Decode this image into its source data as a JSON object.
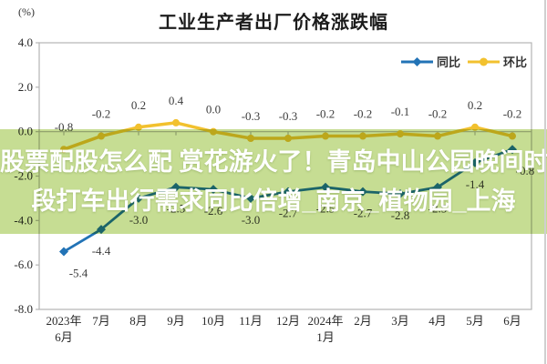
{
  "banner": {
    "line1": "股票配股怎么配 赏花游火了！青岛中山公园晚间时",
    "line2": "段打车出行需求同比倍增_南京_植物园_上海",
    "bg_color": "#c6dd93",
    "text_color": "#ffffff"
  },
  "chart_data": {
    "type": "line",
    "title": "工业生产者出厂价格涨跌幅",
    "unit_label": "(%)",
    "categories": [
      "2023年|6月",
      "7月",
      "8月",
      "9月",
      "10月",
      "11月",
      "12月",
      "2024年|1月",
      "2月",
      "3月",
      "4月",
      "5月",
      "6月"
    ],
    "series": [
      {
        "name": "同比",
        "color": "#2273b6",
        "marker": "diamond",
        "label_side": "below",
        "values": [
          -5.4,
          -4.4,
          -3.0,
          -2.5,
          -2.6,
          -3.0,
          -2.7,
          -2.5,
          -2.7,
          -2.8,
          -2.5,
          -1.4,
          -0.8
        ]
      },
      {
        "name": "环比",
        "color": "#f2c12e",
        "marker": "circle",
        "label_side": "above",
        "values": [
          -0.8,
          -0.2,
          0.2,
          0.4,
          0.0,
          -0.3,
          -0.3,
          -0.2,
          -0.2,
          -0.1,
          -0.2,
          0.2,
          -0.2
        ]
      }
    ],
    "ylim": [
      -8.0,
      4.0
    ],
    "yticks": [
      4.0,
      2.0,
      0.0,
      -2.0,
      -4.0,
      -6.0,
      -8.0
    ],
    "legend_position": "top-right",
    "grid": false,
    "axis_color": "#b5b5b5",
    "tick_text_color": "#2a2a2a",
    "label_text_color": "#3c3c3c"
  }
}
